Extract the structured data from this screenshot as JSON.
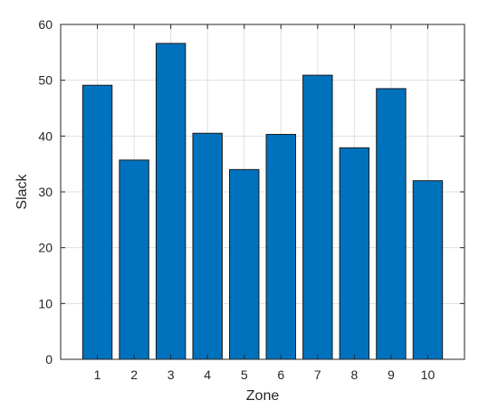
{
  "chart_data": {
    "type": "bar",
    "title": "",
    "xlabel": "Zone",
    "ylabel": "Slack",
    "categories": [
      "1",
      "2",
      "3",
      "4",
      "5",
      "6",
      "7",
      "8",
      "9",
      "10"
    ],
    "values": [
      49.1,
      35.7,
      56.6,
      40.5,
      34.0,
      40.3,
      50.9,
      37.9,
      48.5,
      32.0
    ],
    "ylim": [
      0,
      60
    ],
    "yticks": [
      "0",
      "10",
      "20",
      "30",
      "40",
      "50",
      "60"
    ],
    "grid": true,
    "bar_color": "#0072BD",
    "bar_edge_color": "#1a1a1a",
    "grid_color": "#dfdfdf",
    "axis_color": "#262626"
  }
}
